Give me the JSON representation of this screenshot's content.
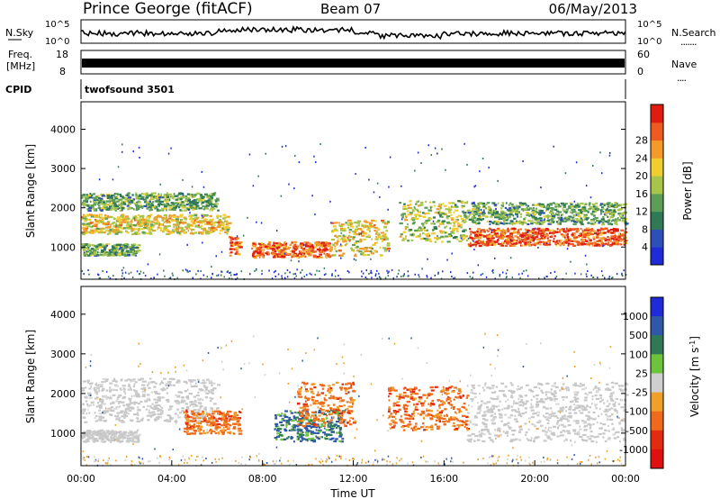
{
  "header": {
    "radar": "Prince George (fitACF)",
    "beam": "Beam 07",
    "date": "06/May/2013"
  },
  "noise_panel": {
    "left_label": "N.Sky",
    "right_label": "N.Search",
    "left_ticks": [
      "10^5",
      "10^0"
    ],
    "right_ticks": [
      "10^5",
      "10^0"
    ]
  },
  "freq_panel": {
    "left_label_1": "Freq.",
    "left_label_2": "[MHz]",
    "left_ticks": [
      "18",
      "8"
    ],
    "right_label": "Nave",
    "right_ticks": [
      "60",
      "0"
    ]
  },
  "cpid": {
    "label": "CPID",
    "program": "twofsound 3501"
  },
  "chart_data": [
    {
      "type": "heatmap",
      "title": "Power",
      "ylabel": "Slant Range [km]",
      "ylim": [
        180,
        4700
      ],
      "yticks": [
        1000,
        2000,
        3000,
        4000
      ],
      "xlim": [
        "00:00",
        "24:00"
      ],
      "colorbar": {
        "label": "Power [dB]",
        "range": [
          0,
          32
        ],
        "ticks": [
          "4",
          "8",
          "12",
          "16",
          "20",
          "24",
          "28"
        ],
        "colors": [
          "#1f2bd8",
          "#2f4fb8",
          "#2f7a55",
          "#5c9e57",
          "#a7c54a",
          "#f0ce2f",
          "#f39a2b",
          "#ee5a1f",
          "#e01b10"
        ]
      },
      "echo_bands": [
        {
          "range_km": [
            1350,
            1850
          ],
          "time": [
            "00:00",
            "06:30"
          ],
          "level_dB": 20
        },
        {
          "range_km": [
            1950,
            2400
          ],
          "time": [
            "00:00",
            "06:00"
          ],
          "level_dB": 12
        },
        {
          "range_km": [
            800,
            1100
          ],
          "time": [
            "00:00",
            "02:30"
          ],
          "level_dB": 12
        },
        {
          "range_km": [
            800,
            1300
          ],
          "time": [
            "06:30",
            "07:00"
          ],
          "level_dB": 28
        },
        {
          "range_km": [
            750,
            1150
          ],
          "time": [
            "07:30",
            "11:00"
          ],
          "level_dB": 28
        },
        {
          "range_km": [
            800,
            1700
          ],
          "time": [
            "11:00",
            "13:30"
          ],
          "level_dB": 20
        },
        {
          "range_km": [
            1150,
            2200
          ],
          "time": [
            "14:00",
            "17:00"
          ],
          "level_dB": 16
        },
        {
          "range_km": [
            1050,
            1500
          ],
          "time": [
            "17:00",
            "24:00"
          ],
          "level_dB": 28
        },
        {
          "range_km": [
            1600,
            2150
          ],
          "time": [
            "17:00",
            "24:00"
          ],
          "level_dB": 12
        }
      ]
    },
    {
      "type": "heatmap",
      "title": "Velocity",
      "ylabel": "Slant Range [km]",
      "xlabel": "Time UT",
      "ylim": [
        180,
        4700
      ],
      "yticks": [
        1000,
        2000,
        3000,
        4000
      ],
      "xticks": [
        "00:00",
        "04:00",
        "08:00",
        "12:00",
        "16:00",
        "20:00",
        "00:00"
      ],
      "xlim": [
        "00:00",
        "24:00"
      ],
      "colorbar": {
        "label": "Velocity [m s^-1]",
        "ticks": [
          "1000",
          "500",
          "100",
          "25",
          "-25",
          "-100",
          "-500",
          "-1000"
        ],
        "colors": [
          "#1f2bd8",
          "#2f58a8",
          "#2f7a55",
          "#6cc43d",
          "#cfcfcf",
          "#f0a02a",
          "#ef6a1a",
          "#e52a12",
          "#e01010"
        ]
      },
      "echo_bands": [
        {
          "range_km": [
            1300,
            2400
          ],
          "time": [
            "00:00",
            "06:00"
          ],
          "velocity": "ground scatter"
        },
        {
          "range_km": [
            800,
            1100
          ],
          "time": [
            "00:00",
            "02:30"
          ],
          "velocity": "ground scatter"
        },
        {
          "range_km": [
            1000,
            1600
          ],
          "time": [
            "04:30",
            "07:00"
          ],
          "velocity": -500
        },
        {
          "range_km": [
            800,
            1600
          ],
          "time": [
            "08:30",
            "11:30"
          ],
          "velocity": 500
        },
        {
          "range_km": [
            1200,
            2300
          ],
          "time": [
            "09:30",
            "12:00"
          ],
          "velocity": -500
        },
        {
          "range_km": [
            1100,
            2200
          ],
          "time": [
            "13:30",
            "17:00"
          ],
          "velocity": -500
        },
        {
          "range_km": [
            800,
            2300
          ],
          "time": [
            "17:00",
            "24:00"
          ],
          "velocity": "ground scatter"
        }
      ]
    }
  ]
}
